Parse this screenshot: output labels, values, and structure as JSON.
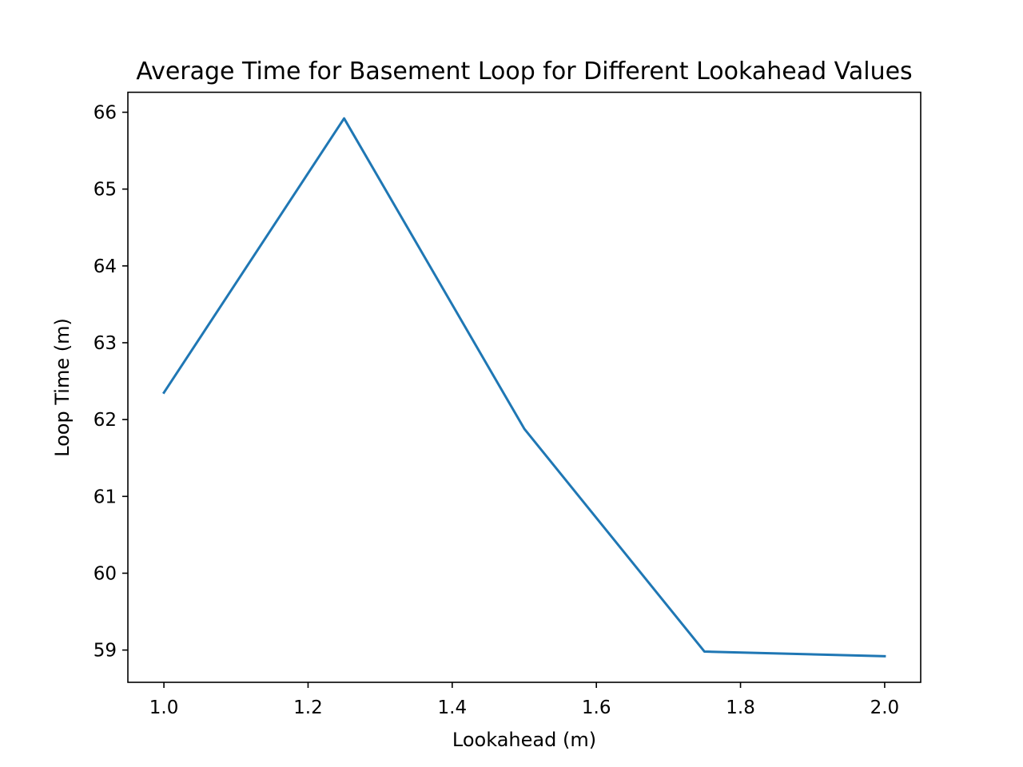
{
  "chart_data": {
    "type": "line",
    "title": "Average Time for Basement Loop for Different Lookahead Values",
    "xlabel": "Lookahead (m)",
    "ylabel": "Loop Time (m)",
    "xlim": [
      0.95,
      2.05
    ],
    "ylim": [
      58.58,
      66.26
    ],
    "xticks": [
      1.0,
      1.2,
      1.4,
      1.6,
      1.8,
      2.0
    ],
    "xtick_labels": [
      "1.0",
      "1.2",
      "1.4",
      "1.6",
      "1.8",
      "2.0"
    ],
    "yticks": [
      59,
      60,
      61,
      62,
      63,
      64,
      65,
      66
    ],
    "ytick_labels": [
      "59",
      "60",
      "61",
      "62",
      "63",
      "64",
      "65",
      "66"
    ],
    "grid": false,
    "legend": "none",
    "series": [
      {
        "color": "#1f77b4",
        "x": [
          1.0,
          1.25,
          1.5,
          1.75,
          2.0
        ],
        "y": [
          62.35,
          65.92,
          61.88,
          58.98,
          58.92
        ]
      }
    ]
  }
}
